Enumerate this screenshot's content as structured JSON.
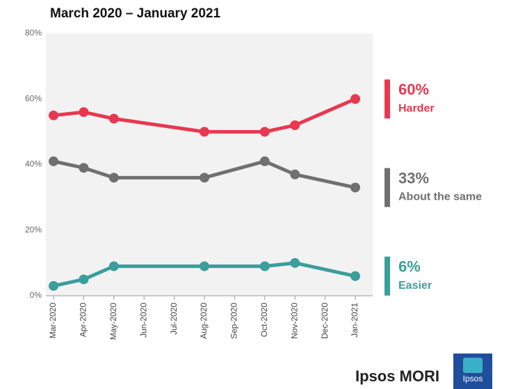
{
  "chart_data": {
    "type": "line",
    "title": "March 2020 – January 2021",
    "categories": [
      "Mar-2020",
      "Apr-2020",
      "May-2020",
      "Jun-2020",
      "Jul-2020",
      "Aug-2020",
      "Sep-2020",
      "Oct-2020",
      "Nov-2020",
      "Dec-2020",
      "Jan-2021"
    ],
    "x": [
      "Mar-2020",
      "Apr-2020",
      "May-2020",
      "Aug-2020",
      "Oct-2020",
      "Nov-2020",
      "Jan-2021"
    ],
    "series": [
      {
        "name": "Harder",
        "color": "#e8384f",
        "values": [
          55,
          56,
          54,
          50,
          50,
          52,
          60
        ],
        "value_labels": [
          null,
          null,
          null,
          null,
          null,
          null,
          "60%"
        ]
      },
      {
        "name": "About the same",
        "color": "#707070",
        "values": [
          41,
          39,
          36,
          36,
          41,
          37,
          33
        ],
        "value_labels": [
          null,
          null,
          null,
          null,
          null,
          null,
          "33%"
        ]
      },
      {
        "name": "Easier",
        "color": "#3a9e9a",
        "values": [
          3,
          5,
          9,
          9,
          9,
          10,
          6
        ],
        "value_labels": [
          null,
          null,
          null,
          null,
          null,
          null,
          "6%"
        ]
      }
    ],
    "ylim": [
      0,
      80
    ],
    "yticks": [
      {
        "value": 0,
        "label": "0%"
      },
      {
        "value": 20,
        "label": "20%"
      },
      {
        "value": 40,
        "label": "40%"
      },
      {
        "value": 60,
        "label": "60%"
      },
      {
        "value": 80,
        "label": "80%"
      }
    ],
    "plot_background": "#f2f2f2"
  },
  "footer": {
    "brand": "Ipsos MORI",
    "logo": "Ipsos"
  }
}
